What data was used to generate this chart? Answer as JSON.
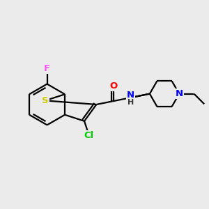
{
  "bg_color": "#ebebeb",
  "bond_color": "#000000",
  "bond_width": 1.6,
  "atom_colors": {
    "S": "#cccc00",
    "Cl": "#00cc00",
    "F": "#ff55ff",
    "O": "#ff0000",
    "N": "#0000ff",
    "H": "#333333",
    "C": "#000000"
  },
  "font_size": 9.5
}
